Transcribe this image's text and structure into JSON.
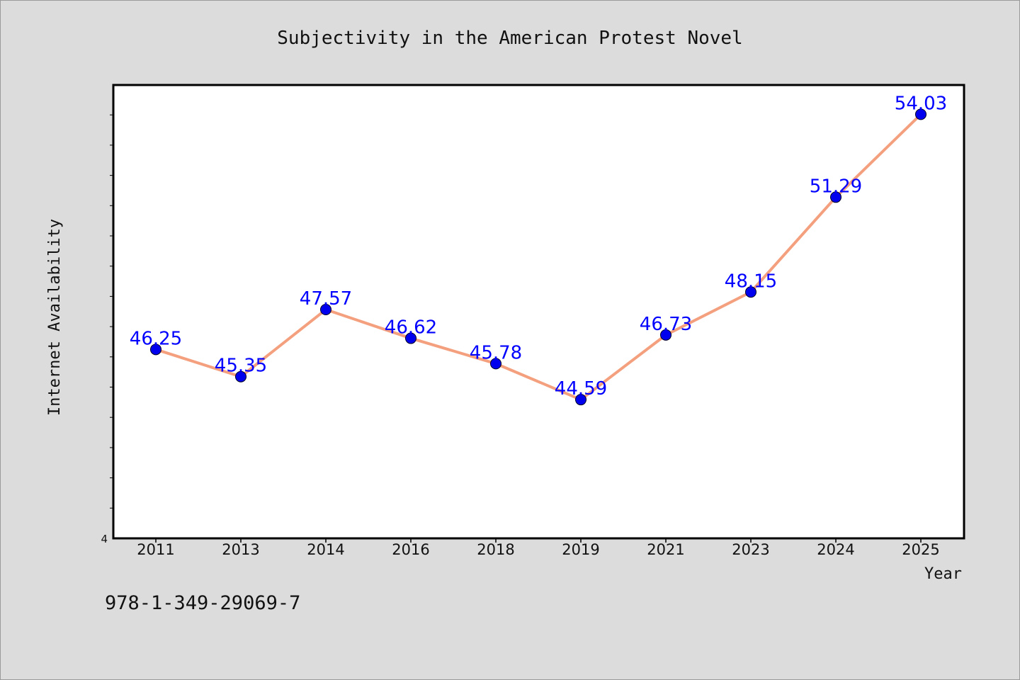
{
  "chart_data": {
    "type": "line",
    "title": "Subjectivity in the American Protest Novel",
    "xlabel": "Year",
    "ylabel": "Internet Availability",
    "categories": [
      "2011",
      "2013",
      "2014",
      "2016",
      "2018",
      "2019",
      "2021",
      "2023",
      "2024",
      "2025"
    ],
    "series": [
      {
        "values": [
          46.25,
          45.35,
          47.57,
          46.62,
          45.78,
          44.59,
          46.73,
          48.15,
          51.29,
          54.03
        ],
        "labels": [
          "46.25",
          "45.35",
          "47.57",
          "46.62",
          "45.78",
          "44.59",
          "46.73",
          "48.15",
          "51.29",
          "54.03"
        ]
      }
    ],
    "yaxis_visible_tick_label": "4",
    "ylim": [
      40,
      55
    ],
    "grid": false,
    "line_color": "#f4a07e",
    "marker_color": "#0000ee",
    "label_color": "#0000ff"
  },
  "footer": {
    "isbn": "978-1-349-29069-7"
  }
}
